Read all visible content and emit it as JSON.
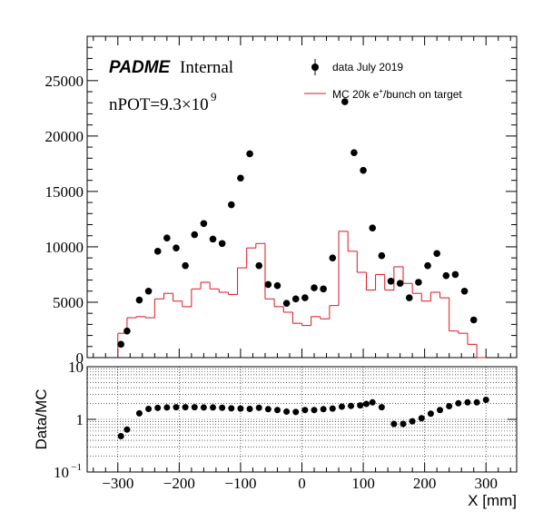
{
  "header": {
    "logo": "PADME",
    "logo_suffix": "Internal",
    "npot_prefix": "nPOT=9.3×10",
    "npot_exponent": "9"
  },
  "legend": {
    "data_label": "data July 2019",
    "mc_label_prefix": "MC 20k e",
    "mc_label_sup": "+",
    "mc_label_suffix": "/bunch on target"
  },
  "colors": {
    "data": "#000000",
    "mc": "#e0141e",
    "grid": "#000000"
  },
  "chart_data": [
    {
      "type": "scatter",
      "panel": "main",
      "xlim": [
        -350,
        350
      ],
      "ylim": [
        0,
        29000
      ],
      "yticks": [
        0,
        5000,
        10000,
        15000,
        20000,
        25000
      ],
      "ytick_labels": [
        "0",
        "5000",
        "10000",
        "15000",
        "20000",
        "25000"
      ],
      "series": [
        {
          "name": "data July 2019",
          "type": "scatter",
          "x": [
            -295,
            -285,
            -265,
            -250,
            -235,
            -220,
            -205,
            -190,
            -175,
            -160,
            -145,
            -130,
            -115,
            -100,
            -85,
            -70,
            -55,
            -40,
            -25,
            -10,
            5,
            20,
            35,
            50,
            70,
            85,
            100,
            115,
            130,
            145,
            160,
            175,
            190,
            205,
            220,
            235,
            250,
            265,
            280,
            300
          ],
          "y": [
            1200,
            2400,
            5200,
            6000,
            9600,
            10800,
            9900,
            8300,
            11100,
            12100,
            10700,
            10300,
            13800,
            16200,
            18400,
            8300,
            6600,
            6500,
            4900,
            5300,
            5400,
            6300,
            6200,
            9000,
            23100,
            18500,
            16900,
            11700,
            9200,
            6900,
            6700,
            5400,
            6800,
            8300,
            9400,
            7400,
            7500,
            6000,
            3400,
            0
          ]
        },
        {
          "name": "MC 20k e+/bunch on target",
          "type": "step",
          "edges": [
            -300,
            -285,
            -270,
            -255,
            -240,
            -225,
            -210,
            -195,
            -180,
            -165,
            -150,
            -135,
            -120,
            -105,
            -90,
            -75,
            -60,
            -45,
            -30,
            -15,
            0,
            15,
            30,
            45,
            60,
            75,
            90,
            105,
            120,
            135,
            150,
            165,
            180,
            195,
            210,
            225,
            240,
            255,
            270,
            285,
            300
          ],
          "values": [
            2200,
            3600,
            3700,
            3600,
            5300,
            5800,
            5100,
            4600,
            6200,
            6800,
            6200,
            5900,
            5700,
            8100,
            9900,
            10300,
            5300,
            4600,
            4100,
            3100,
            2900,
            3700,
            3500,
            4700,
            11400,
            9600,
            7700,
            6100,
            7500,
            6100,
            8200,
            6700,
            5800,
            5100,
            5900,
            5400,
            2400,
            2200,
            1200,
            0
          ]
        }
      ]
    },
    {
      "type": "scatter",
      "panel": "ratio",
      "ylabel": "Data/MC",
      "xlabel": "X [mm]",
      "yscale": "log",
      "xlim": [
        -350,
        350
      ],
      "ylim": [
        0.1,
        10
      ],
      "xticks": [
        -300,
        -200,
        -100,
        0,
        100,
        200,
        300
      ],
      "xtick_labels": [
        "−300",
        "−200",
        "−100",
        "0",
        "100",
        "200",
        "300"
      ],
      "ytick_labels": [
        "10",
        "1",
        "10"
      ],
      "ytick_exponent": "−1",
      "grid": true,
      "series": [
        {
          "name": "Data/MC",
          "x": [
            -295,
            -285,
            -265,
            -250,
            -235,
            -220,
            -205,
            -190,
            -175,
            -160,
            -145,
            -130,
            -115,
            -100,
            -85,
            -70,
            -55,
            -40,
            -25,
            -10,
            5,
            20,
            35,
            50,
            65,
            80,
            95,
            105,
            115,
            130,
            150,
            165,
            180,
            195,
            210,
            225,
            240,
            255,
            270,
            285,
            300
          ],
          "y": [
            0.48,
            0.64,
            1.3,
            1.58,
            1.65,
            1.68,
            1.7,
            1.7,
            1.7,
            1.68,
            1.68,
            1.66,
            1.62,
            1.6,
            1.58,
            1.66,
            1.56,
            1.5,
            1.4,
            1.38,
            1.5,
            1.5,
            1.56,
            1.6,
            1.74,
            1.8,
            1.84,
            1.96,
            2.1,
            1.7,
            0.82,
            0.82,
            0.92,
            1.05,
            1.28,
            1.5,
            1.78,
            2.02,
            2.1,
            2.1,
            2.35
          ]
        }
      ]
    }
  ]
}
